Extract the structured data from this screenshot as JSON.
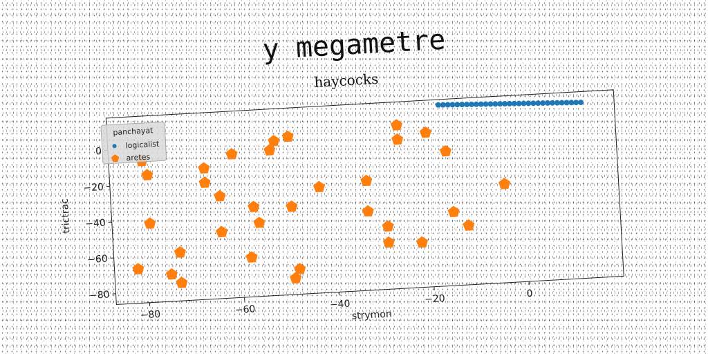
{
  "header": {
    "title": "y megametre"
  },
  "chart_data": {
    "type": "scatter",
    "title": "haycocks",
    "xlabel": "strymon",
    "ylabel": "trictrac",
    "xlim": [
      -87,
      20
    ],
    "ylim": [
      -86,
      18
    ],
    "xticks": [
      -80,
      -60,
      -40,
      -20,
      0
    ],
    "yticks": [
      0,
      -20,
      -40,
      -60,
      -80
    ],
    "grid": false,
    "legend": {
      "title": "panchayat",
      "placement": "top-left"
    },
    "series": [
      {
        "name": "logicalist",
        "color": "#1f77b4",
        "marker": "circle",
        "x": [
          -17,
          -16,
          -15,
          -14,
          -13,
          -12,
          -11,
          -10,
          -9,
          -8,
          -7,
          -6,
          -5,
          -4,
          -3,
          -2,
          -1,
          0,
          1,
          2,
          3,
          4,
          5,
          6,
          7,
          8,
          9,
          10,
          11,
          12,
          13
        ],
        "y": [
          15,
          14.9,
          14.8,
          14.7,
          14.6,
          14.5,
          14.4,
          14.3,
          14.2,
          14.1,
          14.0,
          13.9,
          13.8,
          13.7,
          13.6,
          13.5,
          13.4,
          13.3,
          13.2,
          13.1,
          13.0,
          12.9,
          12.8,
          12.7,
          12.6,
          12.5,
          12.4,
          12.3,
          12.2,
          12.1,
          12.0
        ]
      },
      {
        "name": "aretes",
        "color": "#ff7f0e",
        "marker": "pentagon",
        "x": [
          -80,
          -79,
          -79,
          -82,
          -73,
          -75,
          -73,
          -67,
          -67,
          -64,
          -64,
          -61,
          -57,
          -56,
          -58,
          -53,
          -52,
          -49,
          -49,
          -49,
          -48,
          -43,
          -33,
          -33,
          -29,
          -29,
          -26,
          -26,
          -20,
          -22,
          -16,
          -15,
          -12,
          -4
        ],
        "y": [
          -7,
          -15,
          -42,
          -67,
          -59,
          -71,
          -76,
          -13,
          -21,
          -29,
          -49,
          -6,
          -36,
          -45,
          -64,
          -5,
          0,
          2,
          -37,
          -77,
          -72,
          -27,
          -25,
          -42,
          -51,
          -60,
          5,
          -3,
          0,
          -61,
          -11,
          -45,
          -53,
          -31
        ]
      }
    ]
  }
}
